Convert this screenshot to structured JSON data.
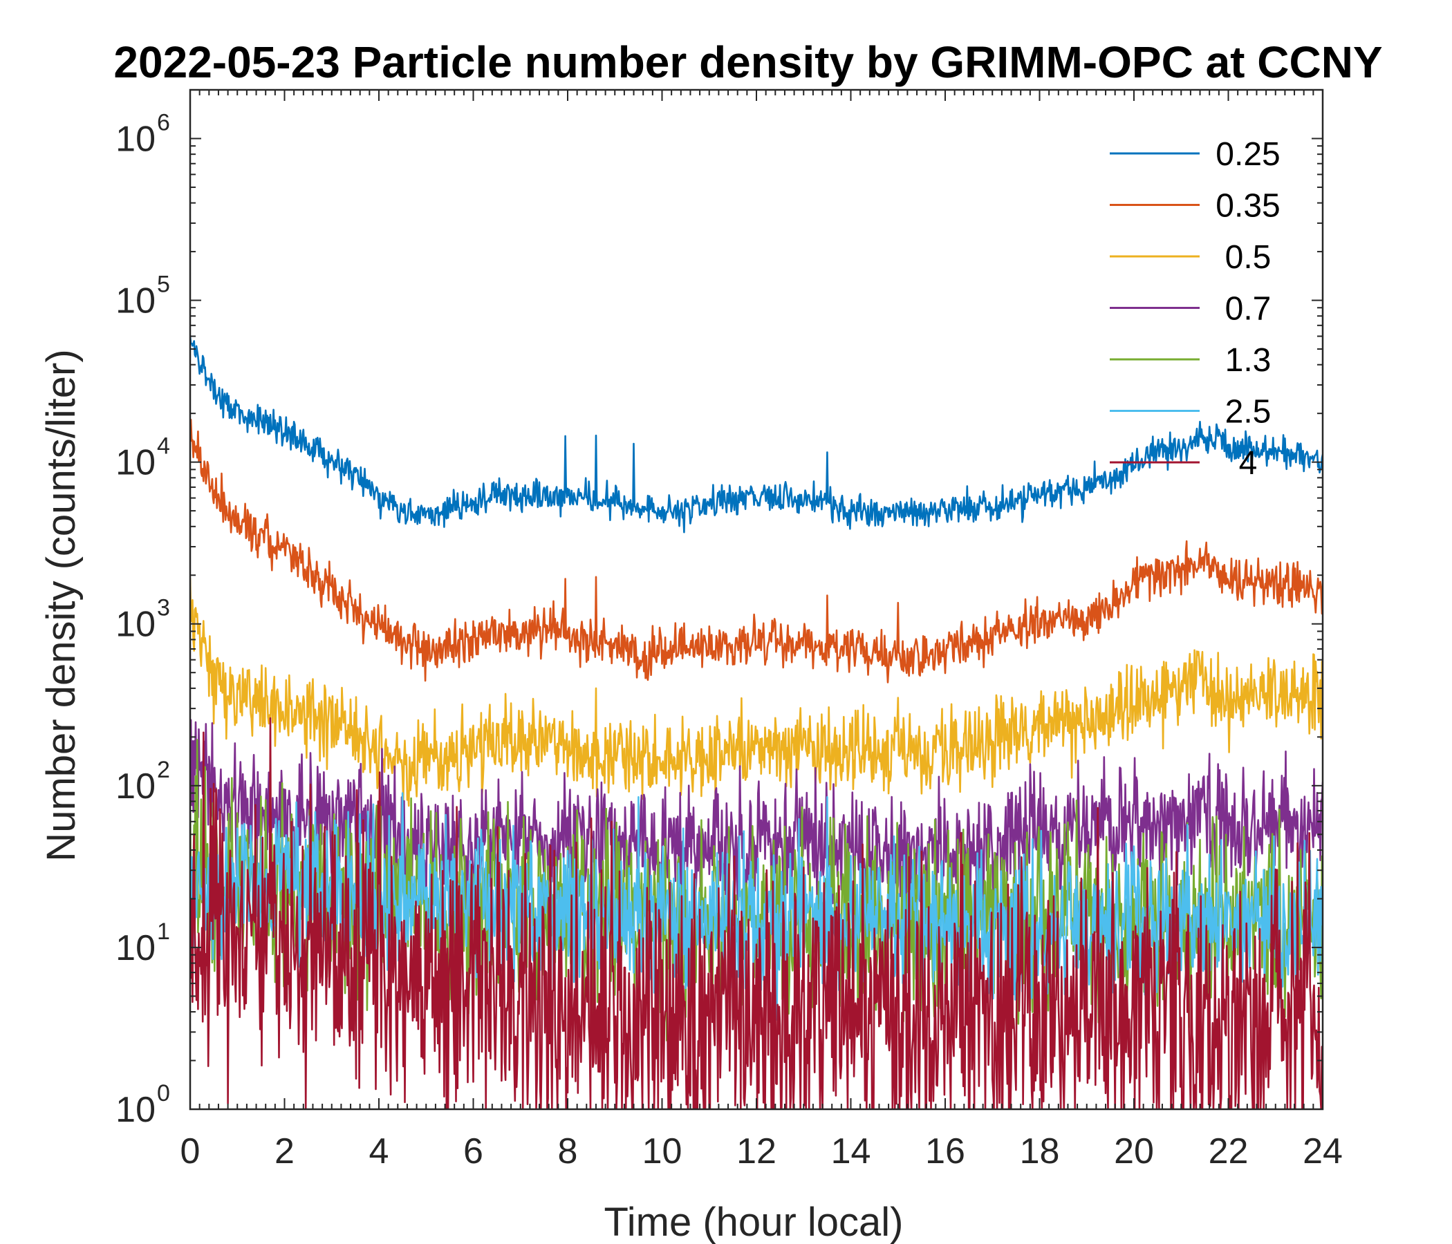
{
  "chart_data": {
    "type": "line",
    "title": "2022-05-23 Particle number density by GRIMM-OPC at CCNY",
    "xlabel": "Time (hour local)",
    "ylabel": "Number density (counts/liter)",
    "xlim": [
      0,
      24
    ],
    "ylim": [
      1,
      2000000
    ],
    "yscale": "log",
    "xticks": [
      0,
      2,
      4,
      6,
      8,
      10,
      12,
      14,
      16,
      18,
      20,
      22,
      24
    ],
    "yticks": [
      {
        "value": 1,
        "base": "10",
        "exp": "0"
      },
      {
        "value": 10,
        "base": "10",
        "exp": "1"
      },
      {
        "value": 100,
        "base": "10",
        "exp": "2"
      },
      {
        "value": 1000,
        "base": "10",
        "exp": "3"
      },
      {
        "value": 10000,
        "base": "10",
        "exp": "4"
      },
      {
        "value": 100000,
        "base": "10",
        "exp": "5"
      },
      {
        "value": 1000000,
        "base": "10",
        "exp": "6"
      }
    ],
    "legend_position": "top-right",
    "x": [
      0,
      0.5,
      1,
      1.5,
      2,
      2.5,
      3,
      3.5,
      4,
      4.5,
      5,
      5.5,
      6,
      6.5,
      7,
      7.5,
      8,
      8.5,
      9,
      9.5,
      10,
      10.5,
      11,
      11.5,
      12,
      12.5,
      13,
      13.5,
      14,
      14.5,
      15,
      15.5,
      16,
      16.5,
      17,
      17.5,
      18,
      18.5,
      19,
      19.5,
      20,
      20.5,
      21,
      21.5,
      22,
      22.5,
      23,
      23.5,
      24
    ],
    "series": [
      {
        "name": "0.25",
        "color": "#0072BD",
        "noise": 0.05,
        "values": [
          52000,
          28000,
          20000,
          18000,
          15000,
          12500,
          10000,
          8500,
          6200,
          5000,
          4800,
          5200,
          5600,
          6500,
          6000,
          6200,
          5800,
          5900,
          5700,
          5200,
          5000,
          5100,
          5300,
          5800,
          6400,
          5900,
          5800,
          5600,
          5000,
          4800,
          4900,
          5000,
          5200,
          5400,
          5500,
          5700,
          6300,
          6800,
          7200,
          7800,
          10000,
          11500,
          12000,
          15000,
          12500,
          12000,
          11500,
          11000,
          10500
        ],
        "spikes": [
          [
            7.95,
            14500
          ],
          [
            8.6,
            14600
          ],
          [
            9.4,
            13000
          ],
          [
            13.5,
            11500
          ]
        ]
      },
      {
        "name": "0.35",
        "color": "#D95319",
        "noise": 0.07,
        "values": [
          14500,
          6000,
          4200,
          3500,
          2800,
          2100,
          1600,
          1200,
          1000,
          800,
          700,
          720,
          800,
          850,
          880,
          900,
          850,
          750,
          800,
          650,
          650,
          700,
          720,
          750,
          780,
          760,
          760,
          720,
          700,
          650,
          620,
          640,
          700,
          750,
          800,
          900,
          1000,
          1100,
          1100,
          1300,
          1800,
          2000,
          2200,
          2600,
          1900,
          1800,
          1800,
          1700,
          1650
        ],
        "spikes": [
          [
            7.95,
            1900
          ],
          [
            8.6,
            1950
          ],
          [
            13.5,
            1500
          ],
          [
            15,
            1350
          ]
        ]
      },
      {
        "name": "0.5",
        "color": "#EDB120",
        "noise": 0.12,
        "values": [
          1150,
          450,
          370,
          330,
          300,
          260,
          230,
          200,
          160,
          140,
          145,
          155,
          170,
          185,
          190,
          195,
          180,
          160,
          170,
          140,
          140,
          150,
          160,
          165,
          175,
          175,
          180,
          170,
          165,
          155,
          150,
          155,
          170,
          180,
          195,
          210,
          230,
          250,
          240,
          280,
          350,
          380,
          400,
          420,
          320,
          340,
          360,
          380,
          400
        ],
        "spikes": [
          [
            8.6,
            400
          ],
          [
            15,
            350
          ],
          [
            23.8,
            650
          ]
        ]
      },
      {
        "name": "0.7",
        "color": "#7E2F8E",
        "noise": 0.18,
        "values": [
          170,
          95,
          75,
          70,
          68,
          66,
          60,
          55,
          52,
          45,
          42,
          42,
          44,
          46,
          46,
          48,
          46,
          44,
          45,
          40,
          38,
          40,
          42,
          42,
          44,
          44,
          44,
          42,
          40,
          40,
          38,
          39,
          40,
          42,
          45,
          48,
          50,
          52,
          55,
          58,
          60,
          60,
          62,
          62,
          58,
          60,
          60,
          60,
          58
        ],
        "spikes": []
      },
      {
        "name": "1.3",
        "color": "#77AC30",
        "noise": 0.28,
        "values": [
          40,
          28,
          26,
          25,
          24,
          23,
          22,
          21,
          20,
          19,
          18,
          18,
          18,
          18,
          18,
          18,
          17,
          17,
          17,
          17,
          16,
          16,
          16,
          16,
          16,
          16,
          16,
          16,
          15,
          15,
          15,
          15,
          15,
          15,
          15,
          15,
          15,
          15,
          15,
          15,
          15,
          15,
          15,
          15,
          15,
          15,
          15,
          15,
          15
        ],
        "spikes": []
      },
      {
        "name": "2.5",
        "color": "#4DBEEE",
        "noise": 0.22,
        "values": [
          24,
          26,
          26,
          26,
          25,
          25,
          24,
          23,
          22,
          21,
          20,
          19,
          18,
          18,
          18,
          17,
          17,
          17,
          16,
          16,
          16,
          16,
          15,
          15,
          15,
          15,
          15,
          15,
          15,
          15,
          14,
          14,
          14,
          14,
          14,
          14,
          14,
          14,
          14,
          14,
          14,
          14,
          14,
          14,
          14,
          14,
          14,
          14,
          14
        ],
        "spikes": [
          [
            4.5,
            90
          ],
          [
            9.5,
            85
          ],
          [
            13.5,
            85
          ]
        ]
      },
      {
        "name": "4",
        "color": "#A2142F",
        "noise": 0.45,
        "values": [
          11,
          11,
          13,
          14,
          12,
          10,
          9,
          8,
          7,
          6,
          6,
          6,
          5,
          5,
          5,
          5,
          4,
          4,
          4,
          4,
          4,
          4,
          4,
          4,
          4,
          4,
          4,
          4,
          4,
          4,
          4,
          4,
          4,
          4,
          4,
          4,
          4,
          4,
          4,
          4,
          4,
          4,
          4,
          4,
          4,
          4,
          4,
          4,
          4
        ],
        "spikes": []
      }
    ]
  }
}
